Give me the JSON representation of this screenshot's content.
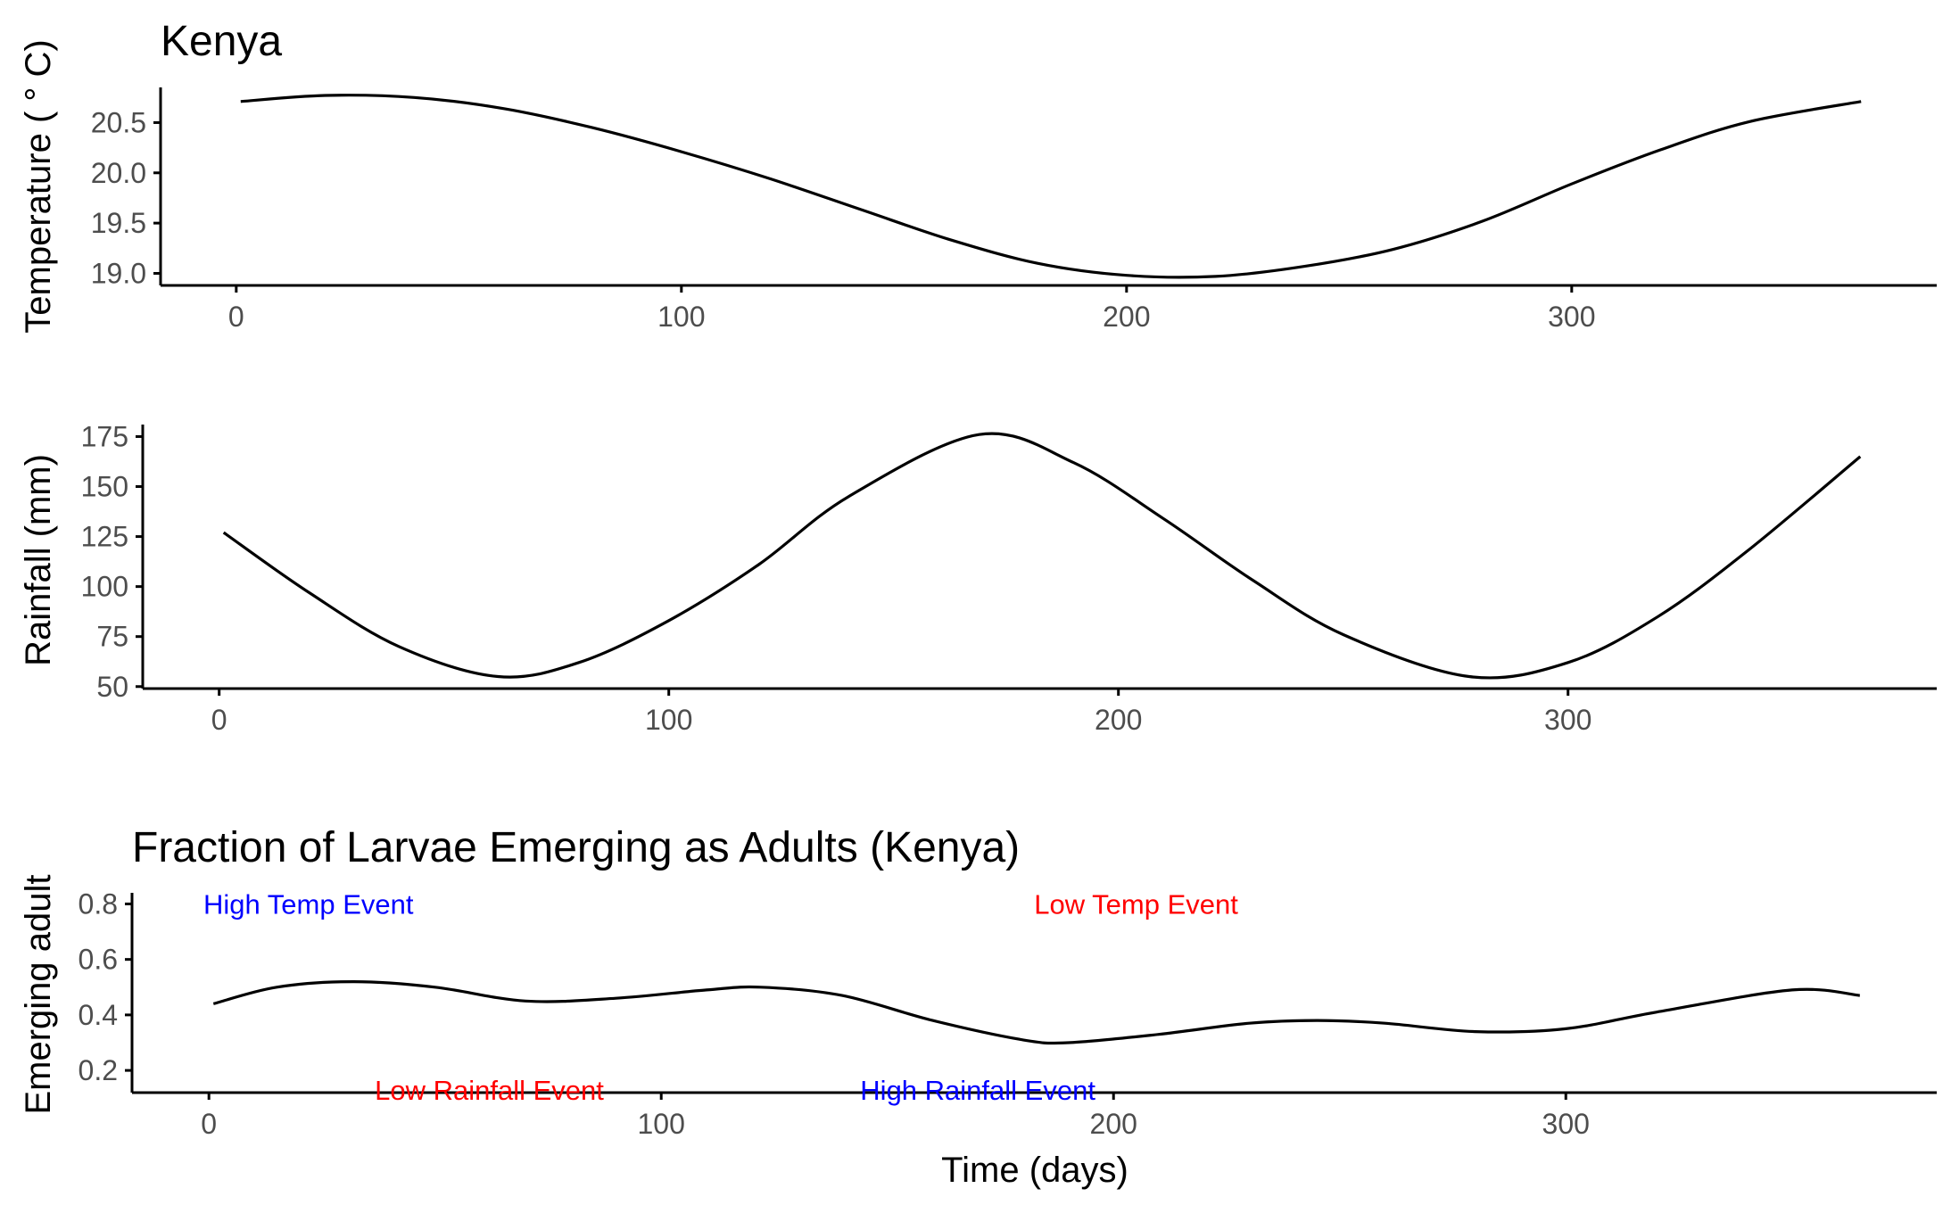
{
  "chart_data": [
    {
      "type": "line",
      "title": "Kenya",
      "xlabel": "",
      "ylabel": "Temperature ( ° C)",
      "xlim": [
        -17,
        382
      ],
      "ylim": [
        18.88,
        20.85
      ],
      "x_ticks": [
        0,
        100,
        200,
        300
      ],
      "y_ticks": [
        19.0,
        19.5,
        20.0,
        20.5
      ],
      "y_tick_labels": [
        "19.0",
        "19.5",
        "20.0",
        "20.5"
      ],
      "grid": false,
      "series": [
        {
          "x": [
            1,
            20,
            40,
            60,
            80,
            100,
            120,
            140,
            160,
            180,
            200,
            220,
            240,
            260,
            280,
            300,
            320,
            340,
            365
          ],
          "values": [
            20.71,
            20.77,
            20.75,
            20.64,
            20.45,
            20.21,
            19.94,
            19.64,
            19.34,
            19.1,
            18.98,
            18.97,
            19.07,
            19.24,
            19.52,
            19.89,
            20.23,
            20.51,
            20.71
          ]
        }
      ]
    },
    {
      "type": "line",
      "title": "",
      "xlabel": "",
      "ylabel": "Rainfall (mm)",
      "xlim": [
        -17,
        382
      ],
      "ylim": [
        49,
        181
      ],
      "x_ticks": [
        0,
        100,
        200,
        300
      ],
      "y_ticks": [
        50,
        75,
        100,
        125,
        150,
        175
      ],
      "y_tick_labels": [
        "50",
        "75",
        "100",
        "125",
        "150",
        "175"
      ],
      "grid": false,
      "series": [
        {
          "x": [
            1,
            20,
            40,
            62,
            80,
            100,
            120,
            140,
            169,
            190,
            210,
            230,
            250,
            278,
            300,
            320,
            340,
            365
          ],
          "values": [
            127,
            97,
            70,
            55,
            62,
            83,
            111,
            145,
            176,
            162,
            134,
            103,
            76,
            55,
            62,
            85,
            118,
            165
          ]
        }
      ]
    },
    {
      "type": "line",
      "title": "Fraction of Larvae Emerging as Adults (Kenya)",
      "xlabel": "Time (days)",
      "ylabel": "Emerging adult",
      "xlim": [
        -17,
        382
      ],
      "ylim": [
        0.12,
        0.84
      ],
      "x_ticks": [
        0,
        100,
        200,
        300
      ],
      "y_ticks": [
        0.2,
        0.4,
        0.6,
        0.8
      ],
      "y_tick_labels": [
        "0.2",
        "0.4",
        "0.6",
        "0.8"
      ],
      "grid": false,
      "series": [
        {
          "x": [
            1,
            15,
            32,
            50,
            70,
            90,
            110,
            122,
            140,
            160,
            180,
            190,
            210,
            230,
            245,
            260,
            280,
            300,
            320,
            350,
            365
          ],
          "values": [
            0.44,
            0.5,
            0.52,
            0.5,
            0.45,
            0.46,
            0.49,
            0.5,
            0.47,
            0.38,
            0.31,
            0.3,
            0.33,
            0.37,
            0.38,
            0.37,
            0.34,
            0.35,
            0.41,
            0.49,
            0.47
          ]
        }
      ],
      "annotations": [
        {
          "text": "High Temp Event",
          "x": 22,
          "y": 0.8,
          "color": "#0000ff"
        },
        {
          "text": "Low Temp Event",
          "x": 205,
          "y": 0.8,
          "color": "#ff0000"
        },
        {
          "text": "Low Rainfall Event",
          "x": 62,
          "y": 0.13,
          "color": "#ff0000"
        },
        {
          "text": "High Rainfall Event",
          "x": 170,
          "y": 0.13,
          "color": "#0000ff"
        }
      ]
    }
  ]
}
